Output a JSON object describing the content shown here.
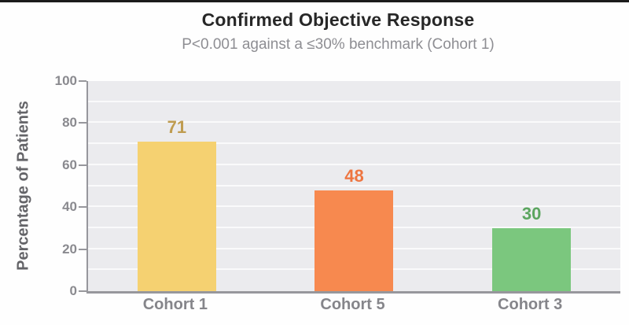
{
  "chart_data": {
    "type": "bar",
    "title": "Confirmed Objective Response",
    "subtitle": "P<0.001 against a ≤30% benchmark (Cohort 1)",
    "ylabel": "Percentage of Patients",
    "xlabel": "",
    "categories": [
      "Cohort 1",
      "Cohort 5",
      "Cohort 3"
    ],
    "values": [
      71,
      48,
      30
    ],
    "bar_colors": [
      "#f5d171",
      "#f7894f",
      "#7bc77e"
    ],
    "value_label_colors": [
      "#bf9c50",
      "#ee7540",
      "#5ba55f"
    ],
    "ylim": [
      0,
      100
    ],
    "yticks": [
      0,
      20,
      40,
      60,
      80,
      100
    ],
    "gridline_step": 10,
    "grid": "horizontal",
    "legend": "none"
  },
  "colors": {
    "panel_background": "#ebebee",
    "gridline": "#fafafb",
    "axis": "#97979c",
    "title": "#272727",
    "subtitle": "#8e8e93",
    "tick_label": "#8a8a8f",
    "category_label": "#85858a",
    "y_axis_title": "#646468",
    "top_border": "#1b1b1b"
  }
}
